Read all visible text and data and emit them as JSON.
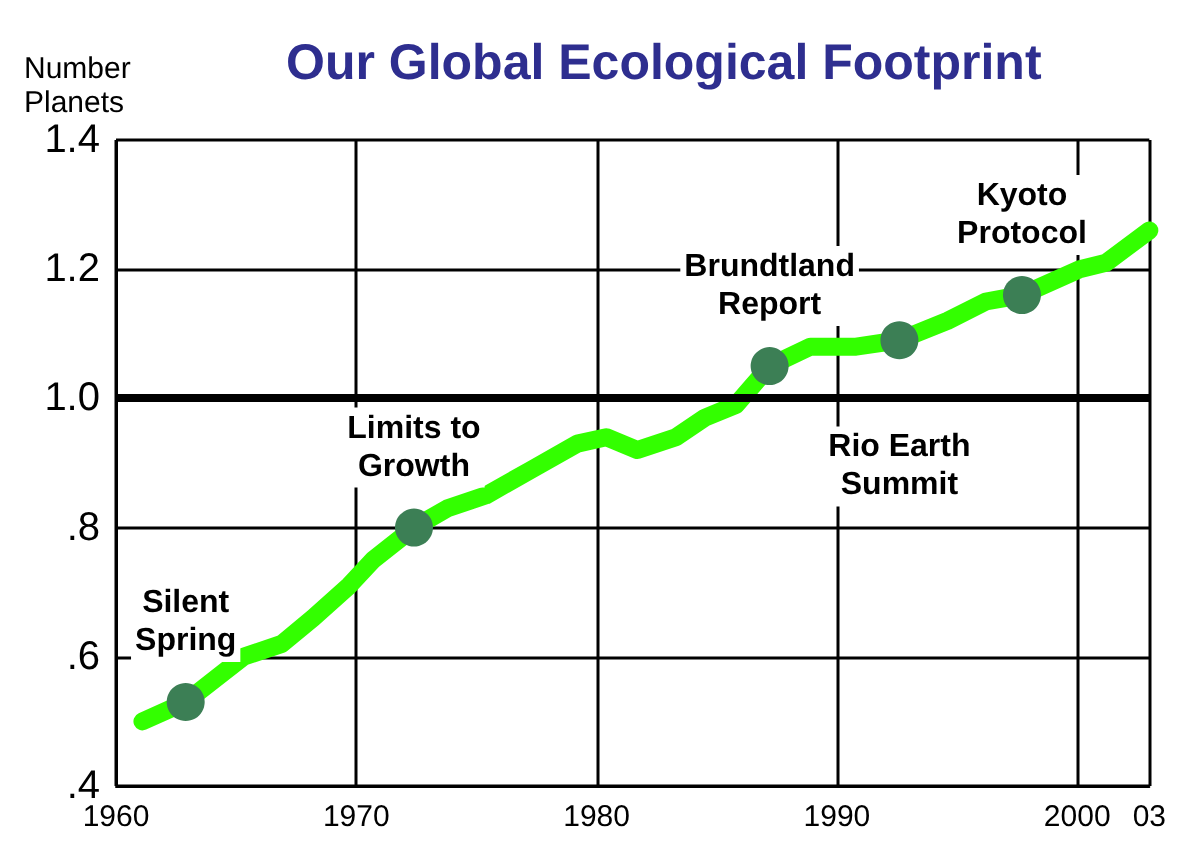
{
  "chart_data": {
    "type": "line",
    "title": "Our Global Ecological Footprint",
    "ylabel": "Number Planets",
    "xlim": [
      1960,
      2003
    ],
    "xticks": [
      1960,
      1970,
      1980,
      1990,
      2000,
      {
        "value": 2003,
        "label": "03"
      }
    ],
    "ylim": [
      0.4,
      1.4
    ],
    "yticks": [
      {
        "value": 0.4,
        "label": ".4"
      },
      {
        "value": 0.6,
        "label": ".6"
      },
      {
        "value": 0.8,
        "label": ".8"
      },
      {
        "value": 1.0,
        "label": "1.0"
      },
      {
        "value": 1.2,
        "label": "1.2"
      },
      {
        "value": 1.4,
        "label": "1.4"
      }
    ],
    "grid": true,
    "line_style": "solid",
    "series": [
      {
        "color": "#33ff00",
        "x": [
          1961.1,
          1962.9,
          1965.3,
          1966.9,
          1968.2,
          1969.7,
          1970.7,
          1972.4,
          1973.8,
          1975.4,
          1977.3,
          1979.2,
          1980.4,
          1981.7,
          1983.3,
          1984.5,
          1985.8,
          1987.2,
          1988.9,
          1990.8,
          1992.6,
          1994.6,
          1996.2,
          1997.7,
          2000.1,
          2001.2,
          2003.0
        ],
        "values": [
          0.5,
          0.53,
          0.6,
          0.62,
          0.66,
          0.71,
          0.75,
          0.8,
          0.83,
          0.85,
          0.89,
          0.93,
          0.94,
          0.92,
          0.94,
          0.97,
          0.99,
          1.05,
          1.08,
          1.08,
          1.09,
          1.12,
          1.15,
          1.16,
          1.2,
          1.21,
          1.26
        ]
      },
      {
        "type": "scatter",
        "color": "#3c7f55",
        "marker": "circle",
        "x": [
          1962.9,
          1972.4,
          1987.2,
          1992.6,
          1997.7
        ],
        "values": [
          0.53,
          0.8,
          1.05,
          1.09,
          1.16
        ]
      }
    ],
    "ref_lines": [
      {
        "axis": "y",
        "value": 1.0,
        "color": "#000000"
      }
    ],
    "annotations": [
      {
        "text": "Silent\nSpring",
        "x": 1962.9,
        "y": 0.53
      },
      {
        "text": "Limits to\nGrowth",
        "x": 1972.4,
        "y": 0.8
      },
      {
        "text": "Brundtland\nReport",
        "x": 1987.2,
        "y": 1.05
      },
      {
        "text": "Rio Earth\nSummit",
        "x": 1992.6,
        "y": 1.09
      },
      {
        "text": "Kyoto\nProtocol",
        "x": 1997.7,
        "y": 1.16
      }
    ]
  }
}
